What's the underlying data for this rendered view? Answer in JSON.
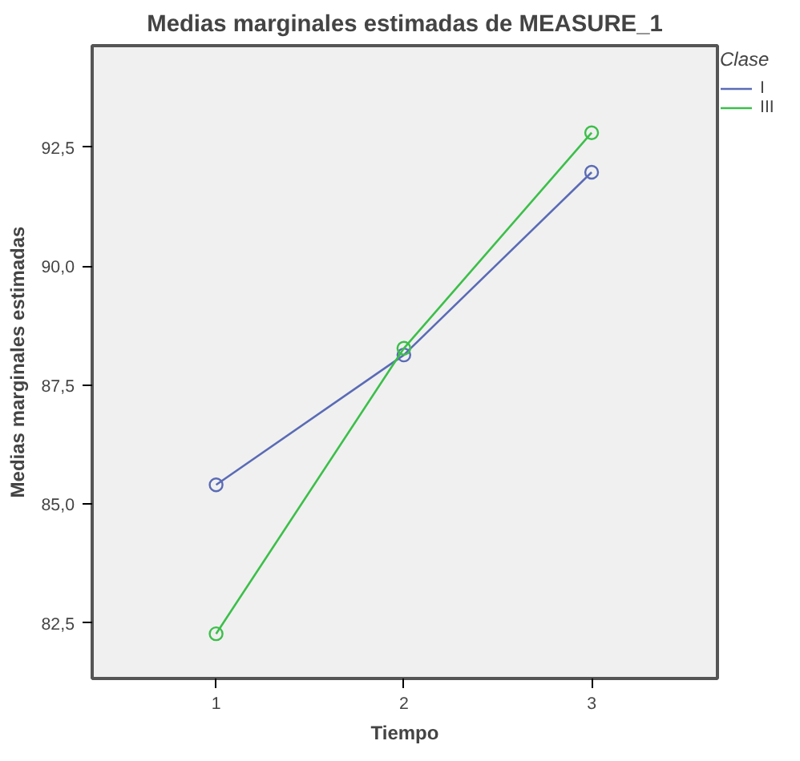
{
  "chart_data": {
    "type": "line",
    "title": "Medias marginales estimadas de MEASURE_1",
    "xlabel": "Tiempo",
    "ylabel": "Medias marginales estimadas",
    "legend_title": "Clase",
    "categories": [
      "1",
      "2",
      "3"
    ],
    "series": [
      {
        "name": "I",
        "color": "#5a6bb5",
        "values": [
          85.4,
          88.13,
          91.97
        ]
      },
      {
        "name": "III",
        "color": "#3cbf4a",
        "values": [
          82.27,
          88.27,
          92.8
        ]
      }
    ],
    "ylim": [
      81.33,
      94.63
    ],
    "yticks": [
      {
        "value": 82.5,
        "label": "82,5"
      },
      {
        "value": 85,
        "label": "85,0"
      },
      {
        "value": 87.5,
        "label": "87,5"
      },
      {
        "value": 90,
        "label": "90,0"
      },
      {
        "value": 92.5,
        "label": "92,5"
      }
    ],
    "grid": false,
    "legend": "right",
    "marker": "circle",
    "line_style": "solid"
  }
}
